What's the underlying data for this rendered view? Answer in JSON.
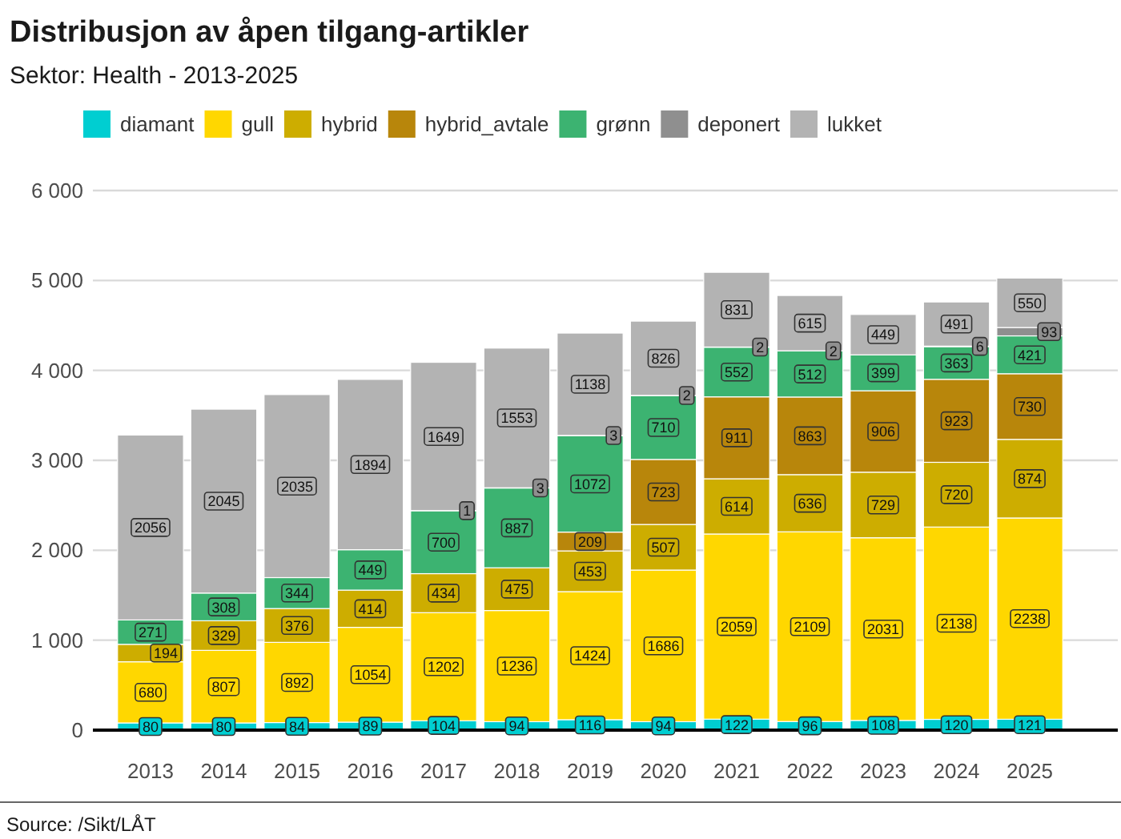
{
  "chart_data": {
    "type": "bar",
    "stacked": true,
    "title": "Distribusjon av åpen tilgang-artikler",
    "subtitle": "Sektor: Health - 2013-2025",
    "annotations": [
      "Source: /Sikt/LÅT"
    ],
    "categories": [
      "2013",
      "2014",
      "2015",
      "2016",
      "2017",
      "2018",
      "2019",
      "2020",
      "2021",
      "2022",
      "2023",
      "2024",
      "2025"
    ],
    "series": [
      {
        "name": "diamant",
        "color": "#00ced1",
        "values": [
          80,
          80,
          84,
          89,
          104,
          94,
          116,
          94,
          122,
          96,
          108,
          120,
          121
        ]
      },
      {
        "name": "gull",
        "color": "#ffd700",
        "values": [
          680,
          807,
          892,
          1054,
          1202,
          1236,
          1424,
          1686,
          2059,
          2109,
          2031,
          2138,
          2238
        ]
      },
      {
        "name": "hybrid",
        "color": "#cdad00",
        "values": [
          194,
          329,
          376,
          414,
          434,
          475,
          453,
          507,
          614,
          636,
          729,
          720,
          874
        ]
      },
      {
        "name": "hybrid_avtale",
        "color": "#b8860b",
        "values": [
          null,
          null,
          null,
          null,
          null,
          null,
          209,
          723,
          911,
          863,
          906,
          923,
          730
        ]
      },
      {
        "name": "grønn",
        "color": "#3cb371",
        "values": [
          271,
          308,
          344,
          449,
          700,
          887,
          1072,
          710,
          552,
          512,
          399,
          363,
          421
        ]
      },
      {
        "name": "deponert",
        "color": "#8f8f8f",
        "values": [
          null,
          null,
          null,
          null,
          1,
          3,
          3,
          2,
          2,
          2,
          null,
          6,
          93
        ]
      },
      {
        "name": "lukket",
        "color": "#b3b3b3",
        "values": [
          2056,
          2045,
          2035,
          1894,
          1649,
          1553,
          1138,
          826,
          831,
          615,
          449,
          491,
          550
        ]
      }
    ],
    "ylim": [
      0,
      6000
    ],
    "yticks": [
      0,
      {
        "value": 1000,
        "label": "1 000"
      },
      {
        "value": 2000,
        "label": "2 000"
      },
      {
        "value": 3000,
        "label": "3 000"
      },
      {
        "value": 4000,
        "label": "4 000"
      },
      {
        "value": 5000,
        "label": "5 000"
      },
      {
        "value": 6000,
        "label": "6 000"
      }
    ],
    "grid": "y",
    "legend": "top",
    "data_labels": true
  }
}
